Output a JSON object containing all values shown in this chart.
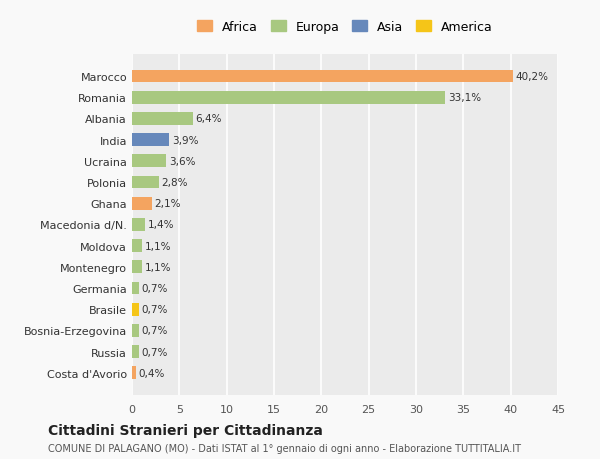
{
  "countries": [
    "Costa d'Avorio",
    "Russia",
    "Bosnia-Erzegovina",
    "Brasile",
    "Germania",
    "Montenegro",
    "Moldova",
    "Macedonia d/N.",
    "Ghana",
    "Polonia",
    "Ucraina",
    "India",
    "Albania",
    "Romania",
    "Marocco"
  ],
  "values": [
    0.4,
    0.7,
    0.7,
    0.7,
    0.7,
    1.1,
    1.1,
    1.4,
    2.1,
    2.8,
    3.6,
    3.9,
    6.4,
    33.1,
    40.2
  ],
  "labels": [
    "0,4%",
    "0,7%",
    "0,7%",
    "0,7%",
    "0,7%",
    "1,1%",
    "1,1%",
    "1,4%",
    "2,1%",
    "2,8%",
    "3,6%",
    "3,9%",
    "6,4%",
    "33,1%",
    "40,2%"
  ],
  "colors": [
    "#f4a460",
    "#a8c880",
    "#a8c880",
    "#f5c518",
    "#a8c880",
    "#a8c880",
    "#a8c880",
    "#a8c880",
    "#f4a460",
    "#a8c880",
    "#a8c880",
    "#6688bb",
    "#a8c880",
    "#a8c880",
    "#f4a460"
  ],
  "legend_labels": [
    "Africa",
    "Europa",
    "Asia",
    "America"
  ],
  "legend_colors": [
    "#f4a460",
    "#a8c880",
    "#6688bb",
    "#f5c518"
  ],
  "title": "Cittadini Stranieri per Cittadinanza",
  "subtitle": "COMUNE DI PALAGANO (MO) - Dati ISTAT al 1° gennaio di ogni anno - Elaborazione TUTTITALIA.IT",
  "xlim": [
    0,
    45
  ],
  "xticks": [
    0,
    5,
    10,
    15,
    20,
    25,
    30,
    35,
    40,
    45
  ],
  "background_color": "#f9f9f9",
  "bar_height": 0.6,
  "grid_color": "#ffffff",
  "axes_bg": "#ebebeb"
}
